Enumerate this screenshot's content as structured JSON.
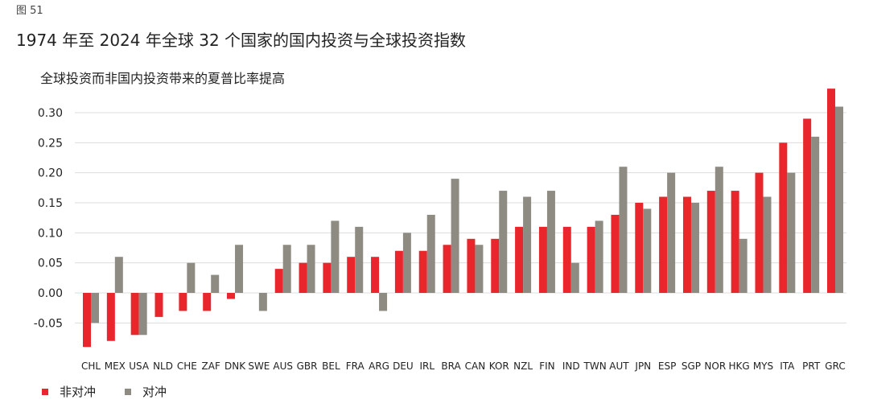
{
  "figure_label": "图 51",
  "title": "1974 年至 2024 年全球 32 个国家的国内投资与全球投资指数",
  "subtitle": "全球投资而非国内投资带来的夏普比率提高",
  "colors": {
    "unhedged": "#e8262b",
    "hedged": "#8e8b82",
    "grid": "#dcdcdc"
  },
  "legend": {
    "unhedged": "非对冲",
    "hedged": "对冲"
  },
  "chart_data": {
    "type": "bar",
    "categories": [
      "CHL",
      "MEX",
      "USA",
      "NLD",
      "CHE",
      "ZAF",
      "DNK",
      "SWE",
      "AUS",
      "GBR",
      "BEL",
      "FRA",
      "ARG",
      "DEU",
      "IRL",
      "BRA",
      "CAN",
      "KOR",
      "NZL",
      "FIN",
      "IND",
      "TWN",
      "AUT",
      "JPN",
      "ESP",
      "SGP",
      "NOR",
      "HKG",
      "MYS",
      "ITA",
      "PRT",
      "GRC"
    ],
    "series": [
      {
        "name": "非对冲",
        "values": [
          -0.09,
          -0.08,
          -0.07,
          -0.04,
          -0.03,
          -0.03,
          -0.01,
          0.0,
          0.04,
          0.05,
          0.05,
          0.06,
          0.06,
          0.07,
          0.07,
          0.08,
          0.09,
          0.09,
          0.11,
          0.11,
          0.11,
          0.11,
          0.13,
          0.15,
          0.16,
          0.16,
          0.17,
          0.17,
          0.2,
          0.25,
          0.29,
          0.34
        ]
      },
      {
        "name": "对冲",
        "values": [
          -0.05,
          0.06,
          -0.07,
          0.0,
          0.05,
          0.03,
          0.08,
          -0.03,
          0.08,
          0.08,
          0.12,
          0.11,
          -0.03,
          0.1,
          0.13,
          0.19,
          0.08,
          0.17,
          0.16,
          0.17,
          0.05,
          0.12,
          0.21,
          0.14,
          0.2,
          0.15,
          0.21,
          0.09,
          0.16,
          0.2,
          0.26,
          0.31
        ]
      }
    ],
    "yticks": [
      "0.30",
      "0.25",
      "0.20",
      "0.15",
      "0.10",
      "0.05",
      "0.00",
      "-0.05"
    ],
    "ytick_values": [
      0.3,
      0.25,
      0.2,
      0.15,
      0.1,
      0.05,
      0.0,
      -0.05
    ],
    "ylim": [
      -0.1,
      0.35
    ],
    "grid": true,
    "legend_position": "bottom-left"
  }
}
